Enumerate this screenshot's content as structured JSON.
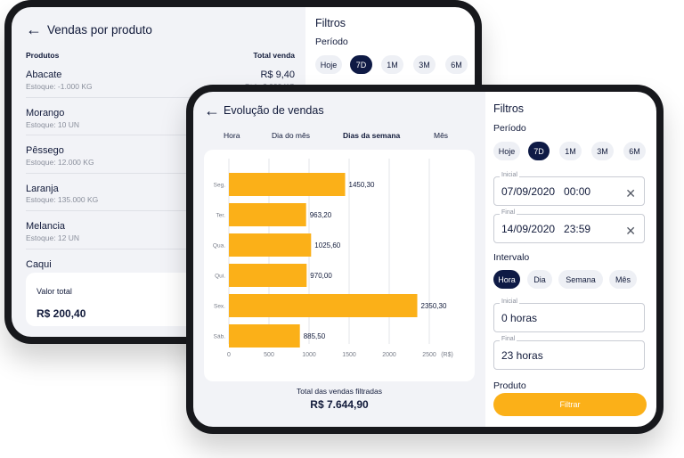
{
  "back": {
    "title": "Vendas por produto",
    "col_products": "Produtos",
    "col_total": "Total venda",
    "rows": [
      {
        "name": "Abacate",
        "stock": "Estoque: -1.000 KG",
        "value": "R$ 9,40",
        "qty": "Qtd.: 2.000 KG"
      },
      {
        "name": "Morango",
        "stock": "Estoque: 10 UN"
      },
      {
        "name": "Pêssego",
        "stock": "Estoque: 12.000 KG"
      },
      {
        "name": "Laranja",
        "stock": "Estoque: 135.000 KG"
      },
      {
        "name": "Melancia",
        "stock": "Estoque: 12 UN"
      },
      {
        "name": "Caqui"
      }
    ],
    "total_label": "Valor total",
    "total_value": "R$ 200,40",
    "filters": {
      "title": "Filtros",
      "period_label": "Período",
      "periods": [
        "Hoje",
        "7D",
        "1M",
        "3M",
        "6M"
      ]
    }
  },
  "front": {
    "title": "Evolução de vendas",
    "tabs": [
      "Hora",
      "Dia do mês",
      "Dias da semana",
      "Mês"
    ],
    "total_label": "Total das vendas filtradas",
    "total_value": "R$ 7.644,90",
    "filters": {
      "title": "Filtros",
      "period_label": "Período",
      "periods": [
        "Hoje",
        "7D",
        "1M",
        "3M",
        "6M"
      ],
      "start_label": "Inicial",
      "start_value": "07/09/2020   00:00",
      "end_label": "Final",
      "end_value": "14/09/2020   23:59",
      "interval_label": "Intervalo",
      "intervals": [
        "Hora",
        "Dia",
        "Semana",
        "Mês"
      ],
      "interval_start_label": "Inicial",
      "interval_start_value": "0 horas",
      "interval_end_label": "Final",
      "interval_end_value": "23 horas",
      "product_label": "Produto",
      "filter_button": "Filtrar"
    }
  },
  "colors": {
    "bar": "#fbb018",
    "navy": "#0e1a45",
    "accent_button": "#fbb018"
  },
  "chart_data": {
    "type": "bar",
    "orientation": "horizontal",
    "categories": [
      "Seg.",
      "Ter.",
      "Qua.",
      "Qui.",
      "Sex.",
      "Sáb."
    ],
    "values": [
      1450.3,
      963.2,
      1025.6,
      970.0,
      2350.3,
      885.5
    ],
    "value_labels": [
      "1450,30",
      "963,20",
      "1025,60",
      "970,00",
      "2350,30",
      "885,50"
    ],
    "xticks": [
      "0",
      "500",
      "1000",
      "1500",
      "2000",
      "2500"
    ],
    "xunit": "(R$)",
    "xlim": [
      0,
      2500
    ],
    "grid": true
  }
}
